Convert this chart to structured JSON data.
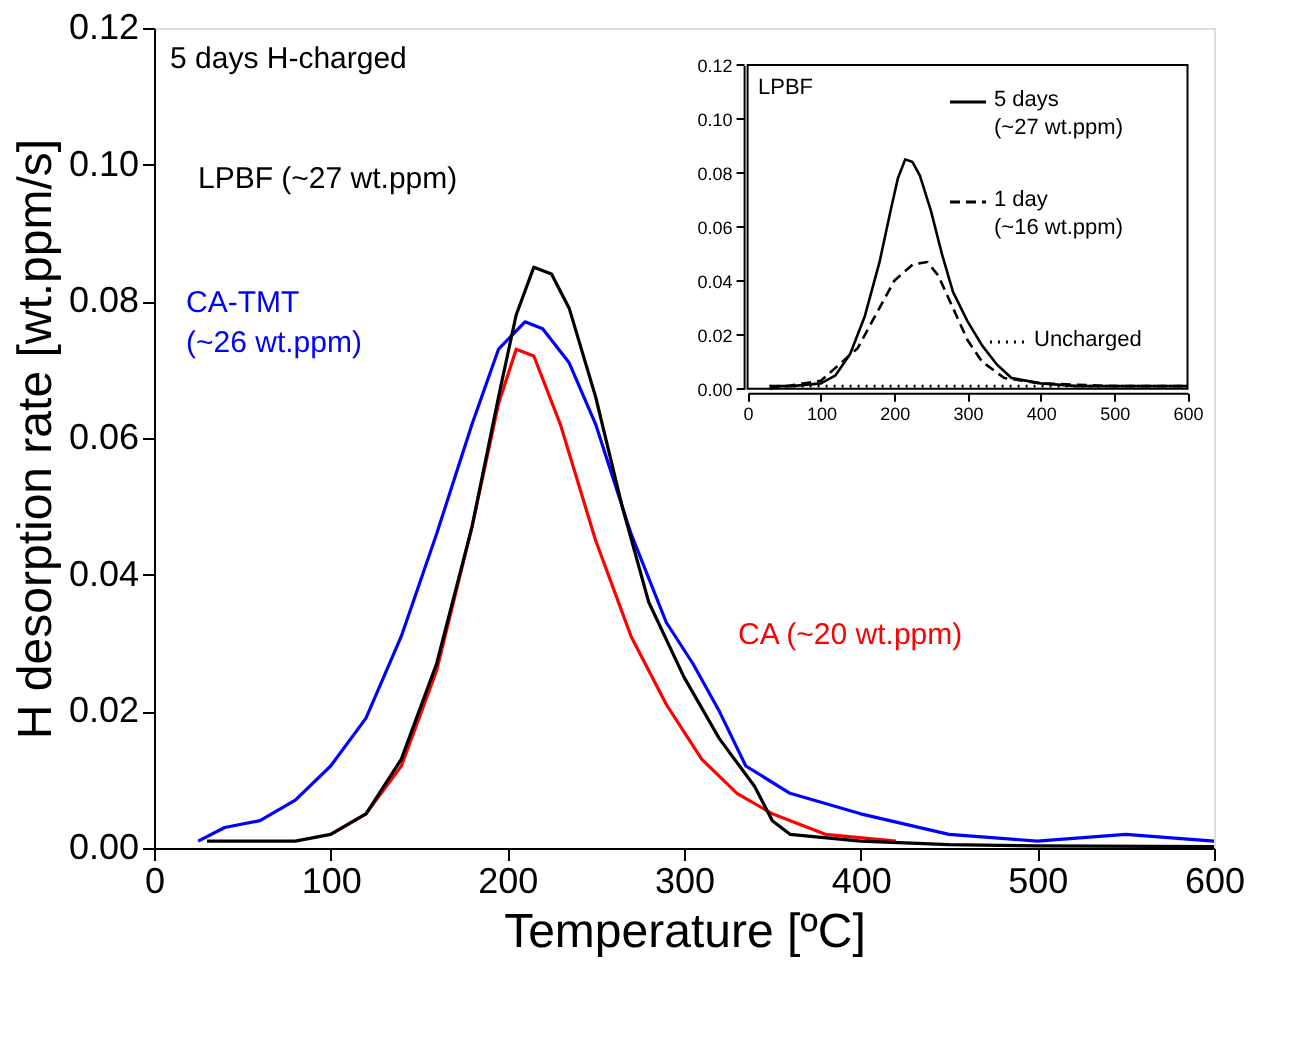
{
  "chart_data": [
    {
      "type": "line",
      "xlabel": "Temperature [ºC]",
      "ylabel": "H desorption rate [wt.ppm/s]",
      "xlim": [
        0,
        600
      ],
      "xticks": [
        0,
        100,
        200,
        300,
        400,
        500,
        600
      ],
      "ylim": [
        0,
        0.12
      ],
      "yticks": [
        {
          "value": 0,
          "label": "0.00"
        },
        {
          "value": 0.02,
          "label": "0.02"
        },
        {
          "value": 0.04,
          "label": "0.04"
        },
        {
          "value": 0.06,
          "label": "0.06"
        },
        {
          "value": 0.08,
          "label": "0.08"
        },
        {
          "value": 0.1,
          "label": "0.10"
        },
        {
          "value": 0.12,
          "label": "0.12"
        }
      ],
      "grid": false,
      "line_style": "solid",
      "marker": "none",
      "series": [
        {
          "name": "CA-TMT\n(~26 wt.ppm)",
          "color": "#0000ff",
          "x": [
            25,
            40,
            60,
            80,
            100,
            120,
            140,
            160,
            180,
            195,
            210,
            220,
            235,
            250,
            270,
            290,
            305,
            320,
            335,
            360,
            400,
            450,
            500,
            550,
            600
          ],
          "values": [
            0.001,
            0.003,
            0.004,
            0.007,
            0.012,
            0.019,
            0.031,
            0.046,
            0.062,
            0.073,
            0.077,
            0.076,
            0.071,
            0.062,
            0.046,
            0.033,
            0.027,
            0.02,
            0.012,
            0.008,
            0.005,
            0.002,
            0.001,
            0.002,
            0.001
          ]
        },
        {
          "name": "CA (~20 wt.ppm)",
          "color": "#ff0000",
          "x": [
            100,
            120,
            140,
            160,
            180,
            195,
            205,
            215,
            230,
            250,
            270,
            290,
            310,
            330,
            350,
            380,
            420
          ],
          "values": [
            0.002,
            0.005,
            0.012,
            0.026,
            0.047,
            0.065,
            0.073,
            0.072,
            0.062,
            0.045,
            0.031,
            0.021,
            0.013,
            0.008,
            0.005,
            0.002,
            0.001
          ]
        },
        {
          "name": "LPBF (~27 wt.ppm)",
          "color": "#000000",
          "x": [
            30,
            60,
            80,
            100,
            120,
            140,
            160,
            180,
            195,
            205,
            215,
            225,
            235,
            250,
            265,
            280,
            300,
            320,
            340,
            350,
            360,
            400,
            450,
            500,
            600
          ],
          "values": [
            0.001,
            0.001,
            0.001,
            0.002,
            0.005,
            0.013,
            0.027,
            0.047,
            0.066,
            0.078,
            0.085,
            0.084,
            0.079,
            0.066,
            0.05,
            0.036,
            0.025,
            0.016,
            0.009,
            0.004,
            0.002,
            0.001,
            0.0005,
            0.0003,
            0.0002
          ]
        }
      ],
      "annotations": [
        "5 days H-charged"
      ]
    },
    {
      "type": "line",
      "xlim": [
        0,
        600
      ],
      "xticks": [
        0,
        100,
        200,
        300,
        400,
        500,
        600
      ],
      "ylim": [
        0,
        0.12
      ],
      "yticks": [
        {
          "value": 0,
          "label": "0.00"
        },
        {
          "value": 0.02,
          "label": "0.02"
        },
        {
          "value": 0.04,
          "label": "0.04"
        },
        {
          "value": 0.06,
          "label": "0.06"
        },
        {
          "value": 0.08,
          "label": "0.08"
        },
        {
          "value": 0.1,
          "label": "0.10"
        },
        {
          "value": 0.12,
          "label": "0.12"
        }
      ],
      "grid": false,
      "marker": "none",
      "legend": "top right",
      "series": [
        {
          "name": "Uncharged",
          "color": "#000000",
          "line_style": "dotted",
          "x": [
            30,
            100,
            200,
            300,
            400,
            500,
            600
          ],
          "values": [
            0.001,
            0.001,
            0.001,
            0.001,
            0.001,
            0.001,
            0.001
          ]
        },
        {
          "name": "1 day\n(~16 wt.ppm)",
          "color": "#000000",
          "line_style": "dashed",
          "x": [
            30,
            100,
            150,
            180,
            200,
            225,
            245,
            260,
            280,
            300,
            320,
            350,
            400,
            500,
            600
          ],
          "values": [
            0,
            0.003,
            0.015,
            0.03,
            0.04,
            0.046,
            0.047,
            0.042,
            0.03,
            0.018,
            0.01,
            0.004,
            0.002,
            0.001,
            0.001
          ]
        },
        {
          "name": "5 days\n(~27 wt.ppm)",
          "color": "#000000",
          "line_style": "solid",
          "x": [
            30,
            60,
            100,
            120,
            140,
            160,
            180,
            195,
            205,
            215,
            225,
            235,
            250,
            265,
            280,
            300,
            320,
            340,
            360,
            400,
            450,
            500,
            600
          ],
          "values": [
            0.001,
            0.001,
            0.002,
            0.005,
            0.013,
            0.027,
            0.047,
            0.066,
            0.078,
            0.085,
            0.084,
            0.079,
            0.066,
            0.05,
            0.036,
            0.025,
            0.016,
            0.009,
            0.004,
            0.002,
            0.001,
            0.001,
            0.001
          ]
        }
      ],
      "annotations": [
        "LPBF"
      ]
    }
  ]
}
